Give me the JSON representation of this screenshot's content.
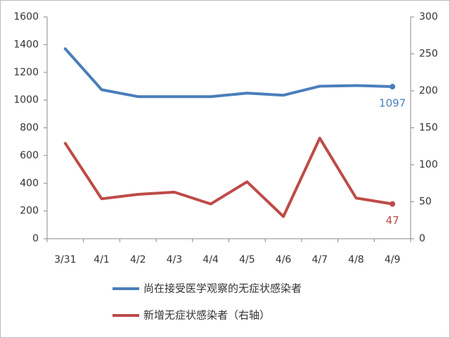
{
  "chart_data": {
    "type": "line",
    "categories": [
      "3/31",
      "4/1",
      "4/2",
      "4/3",
      "4/4",
      "4/5",
      "4/6",
      "4/7",
      "4/8",
      "4/9"
    ],
    "series": [
      {
        "name": "尚在接受医学观察的无症状感染者",
        "color": "#4a7ebb",
        "axis": "y",
        "label_last": true,
        "values": [
          1370,
          1075,
          1025,
          1025,
          1025,
          1050,
          1035,
          1100,
          1105,
          1097
        ]
      },
      {
        "name": "新增无症状感染者（右轴）",
        "color": "#be4b48",
        "axis": "y2",
        "label_last": true,
        "values": [
          129,
          54,
          60,
          63,
          47,
          77,
          30,
          136,
          55,
          47
        ]
      }
    ],
    "ylim": [
      0,
      1600
    ],
    "yticks": [
      0,
      200,
      400,
      600,
      800,
      1000,
      1200,
      1400,
      1600
    ],
    "y2lim": [
      0,
      300
    ],
    "y2ticks": [
      0,
      50,
      100,
      150,
      200,
      250,
      300
    ],
    "grid": false
  }
}
